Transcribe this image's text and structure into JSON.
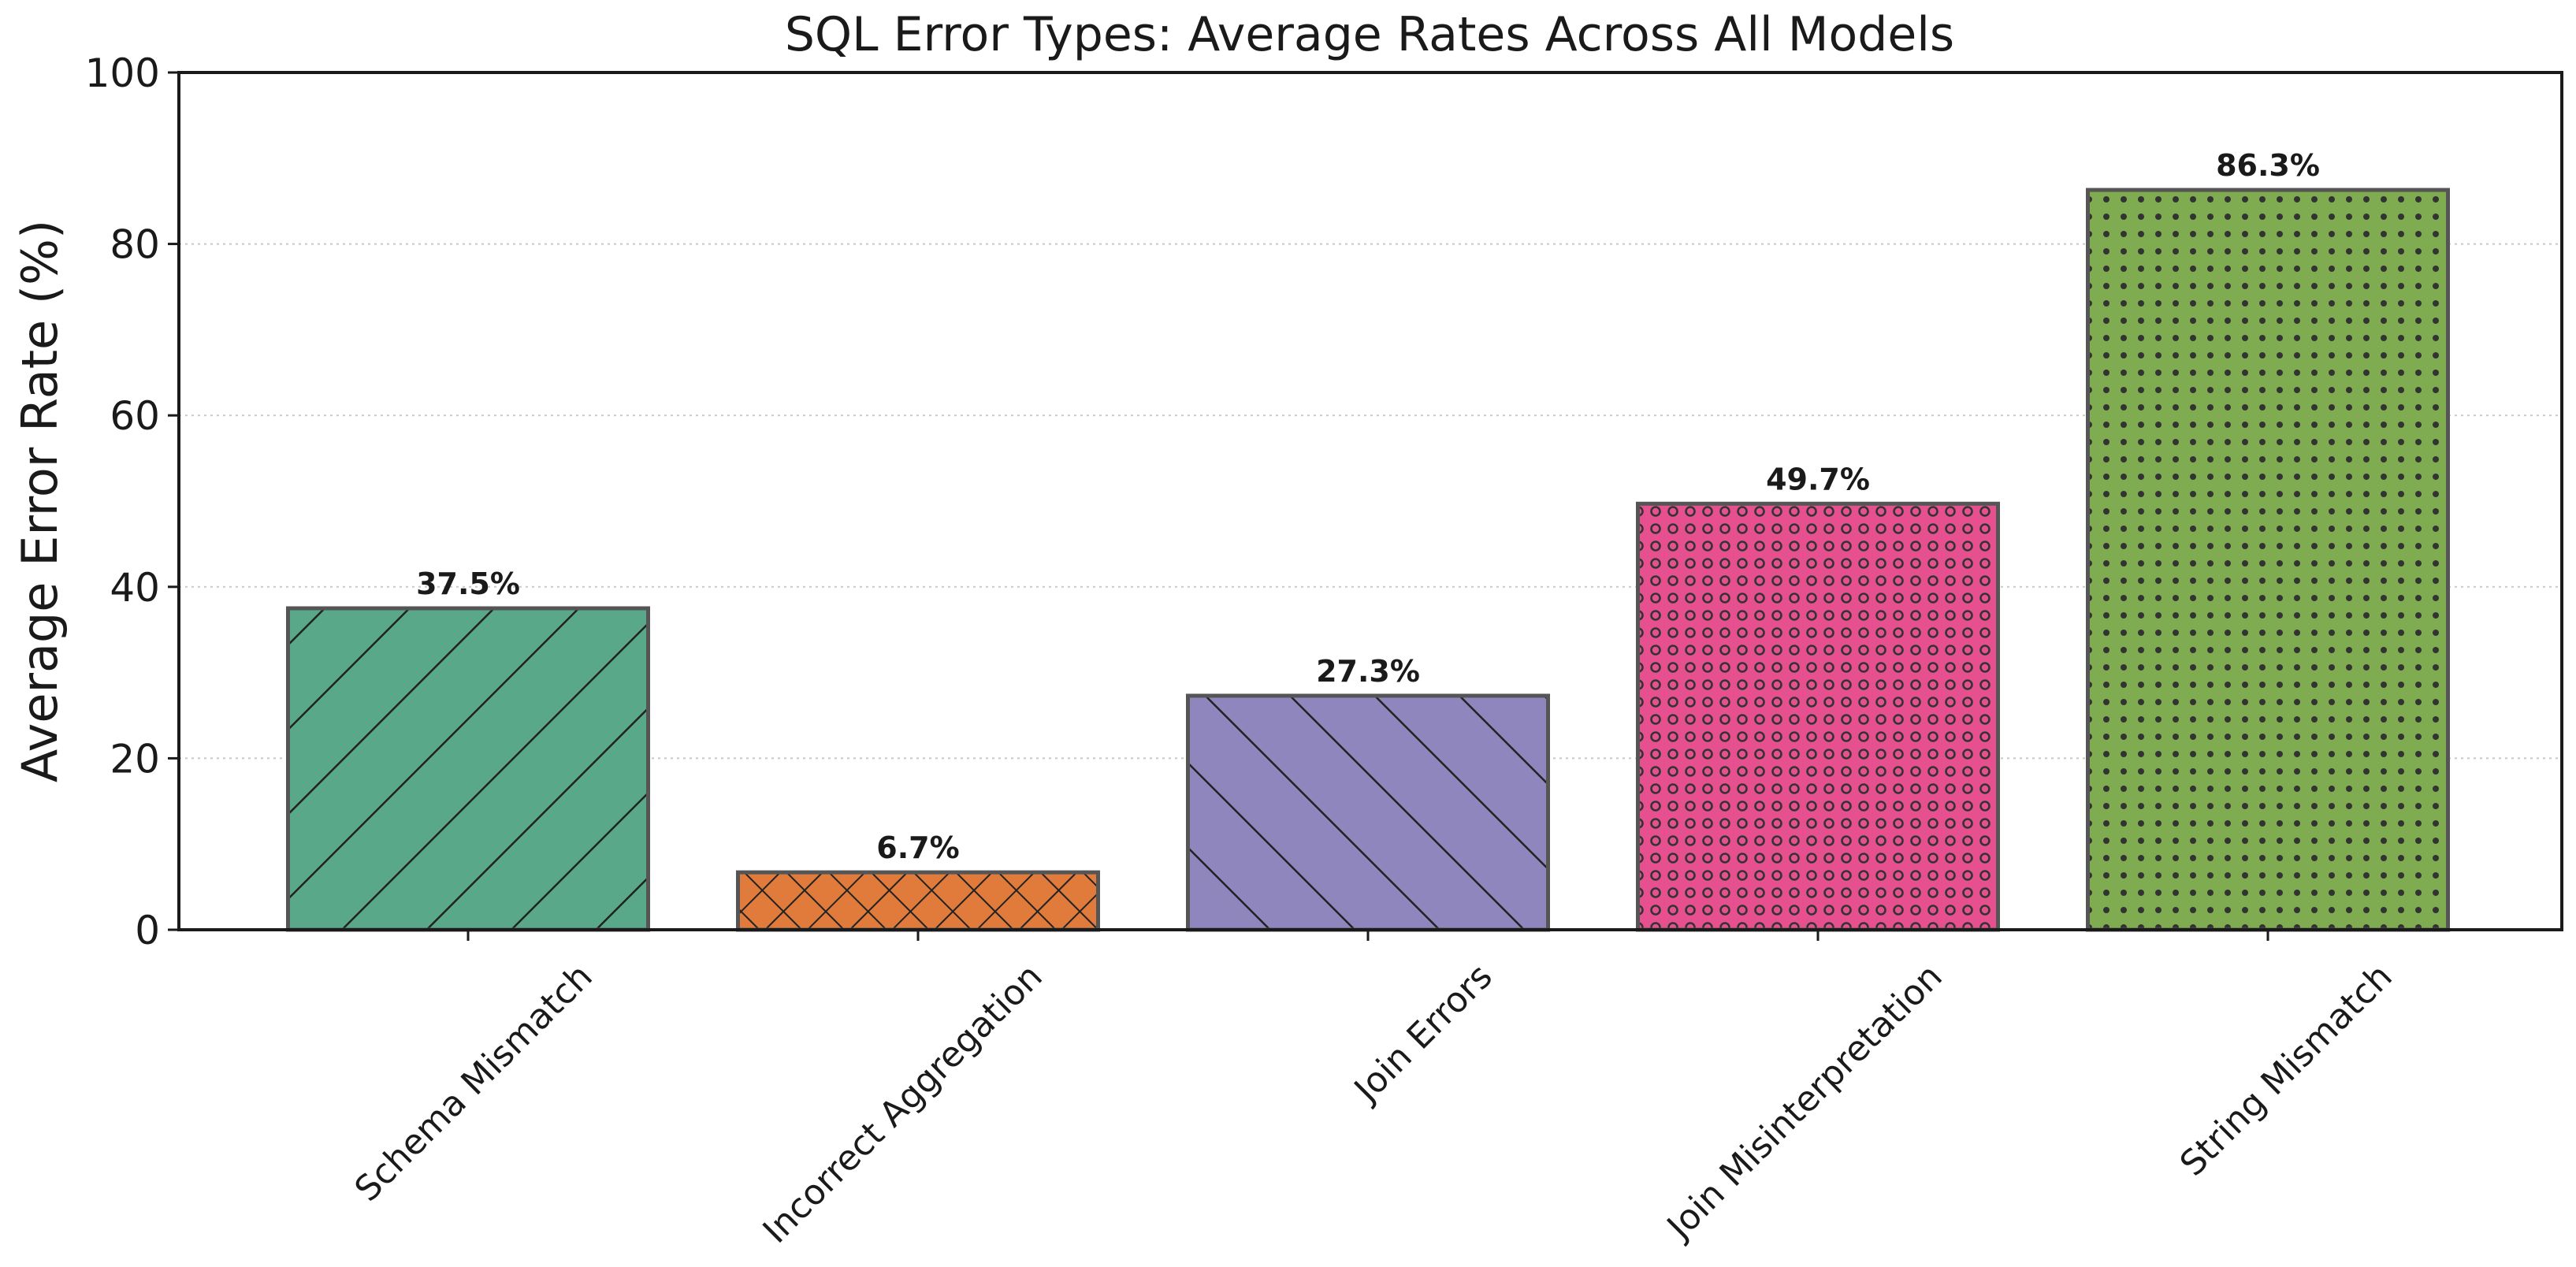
{
  "chart_data": {
    "type": "bar",
    "title": "SQL Error Types: Average Rates Across All Models",
    "xlabel": "",
    "ylabel": "Average Error Rate (%)",
    "ylim": [
      0,
      100
    ],
    "yticks": [
      0,
      20,
      40,
      60,
      80,
      100
    ],
    "grid": "y-dotted",
    "categories": [
      "Schema Mismatch",
      "Incorrect Aggregation",
      "Join Errors",
      "Join Misinterpretation",
      "String Mismatch"
    ],
    "values": [
      37.5,
      6.7,
      27.3,
      49.7,
      86.3
    ],
    "value_labels": [
      "37.5%",
      "6.7%",
      "27.3%",
      "49.7%",
      "86.3%"
    ],
    "colors": [
      "#5aa88a",
      "#e07b3c",
      "#8e86bd",
      "#e7508f",
      "#7fac50"
    ],
    "hatches": [
      "forward-diagonal",
      "crosshatch",
      "back-diagonal",
      "rings",
      "dots"
    ]
  }
}
